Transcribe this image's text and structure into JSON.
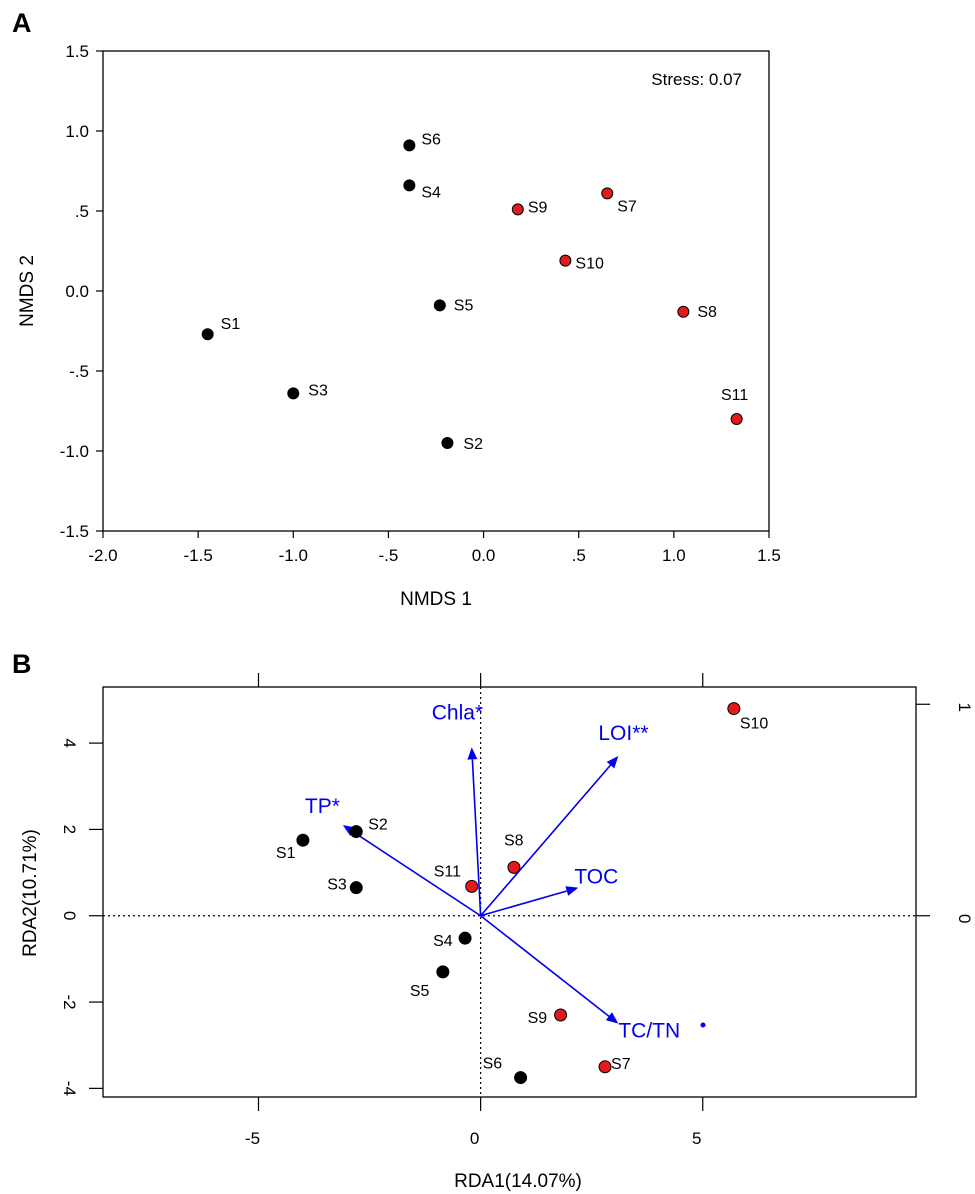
{
  "colors": {
    "black_point": "#000000",
    "red_point": "#e31a1c",
    "arrow": "#0000ee",
    "axis": "#000000"
  },
  "chart_data": [
    {
      "panel": "A",
      "type": "scatter",
      "title": "",
      "xlabel": "NMDS 1",
      "ylabel": "NMDS 2",
      "xlim": [
        -2.0,
        1.5
      ],
      "ylim": [
        -1.5,
        1.5
      ],
      "x_ticks": [
        "-2.0",
        "-1.5",
        "-1.0",
        "-.5",
        "0.0",
        ".5",
        "1.0",
        "1.5"
      ],
      "x_tick_values": [
        -2.0,
        -1.5,
        -1.0,
        -0.5,
        0.0,
        0.5,
        1.0,
        1.5
      ],
      "y_ticks": [
        "1.5",
        "1.0",
        ".5",
        "0.0",
        "-.5",
        "-1.0",
        "-1.5"
      ],
      "y_tick_values": [
        1.5,
        1.0,
        0.5,
        0.0,
        -0.5,
        -1.0,
        -1.5
      ],
      "annotation": "Stress: 0.07",
      "points": [
        {
          "label": "S1",
          "x": -1.45,
          "y": -0.27,
          "group": "black"
        },
        {
          "label": "S2",
          "x": -0.19,
          "y": -0.95,
          "group": "black"
        },
        {
          "label": "S3",
          "x": -1.0,
          "y": -0.64,
          "group": "black"
        },
        {
          "label": "S4",
          "x": -0.39,
          "y": 0.66,
          "group": "black"
        },
        {
          "label": "S5",
          "x": -0.23,
          "y": -0.09,
          "group": "black"
        },
        {
          "label": "S6",
          "x": -0.39,
          "y": 0.91,
          "group": "black"
        },
        {
          "label": "S7",
          "x": 0.65,
          "y": 0.61,
          "group": "red"
        },
        {
          "label": "S8",
          "x": 1.05,
          "y": -0.13,
          "group": "red"
        },
        {
          "label": "S9",
          "x": 0.18,
          "y": 0.51,
          "group": "red"
        },
        {
          "label": "S10",
          "x": 0.43,
          "y": 0.19,
          "group": "red"
        },
        {
          "label": "S11",
          "x": 1.33,
          "y": -0.8,
          "group": "red"
        }
      ]
    },
    {
      "panel": "B",
      "type": "scatter",
      "title": "",
      "xlabel": "RDA1(14.07%)",
      "ylabel": "RDA2(10.71%)",
      "xlim": [
        -8.5,
        9.8
      ],
      "ylim": [
        -4.2,
        5.3
      ],
      "x_ticks": [
        "-5",
        "0",
        "5"
      ],
      "x_tick_values": [
        -5,
        0,
        5
      ],
      "y_ticks": [
        "4",
        "2",
        "0",
        "-2",
        "-4"
      ],
      "y_tick_values": [
        4,
        2,
        0,
        -2,
        -4
      ],
      "top_ticks": [
        -5,
        0,
        5
      ],
      "right_axis_ticks": [
        "1",
        "0"
      ],
      "right_axis_values": [
        4.9,
        0
      ],
      "points": [
        {
          "label": "S1",
          "x": -4.0,
          "y": 1.75,
          "group": "black"
        },
        {
          "label": "S2",
          "x": -2.8,
          "y": 1.95,
          "group": "black"
        },
        {
          "label": "S3",
          "x": -2.8,
          "y": 0.65,
          "group": "black"
        },
        {
          "label": "S4",
          "x": -0.35,
          "y": -0.52,
          "group": "black"
        },
        {
          "label": "S5",
          "x": -0.85,
          "y": -1.3,
          "group": "black"
        },
        {
          "label": "S6",
          "x": 0.9,
          "y": -3.75,
          "group": "black"
        },
        {
          "label": "S7",
          "x": 2.8,
          "y": -3.5,
          "group": "red"
        },
        {
          "label": "S8",
          "x": 0.75,
          "y": 1.12,
          "group": "red"
        },
        {
          "label": "S9",
          "x": 1.8,
          "y": -2.3,
          "group": "red"
        },
        {
          "label": "S10",
          "x": 5.7,
          "y": 4.8,
          "group": "red"
        },
        {
          "label": "S11",
          "x": -0.2,
          "y": 0.68,
          "group": "red"
        }
      ],
      "vectors": [
        {
          "label": "Chla*",
          "x": -0.2,
          "y": 3.9
        },
        {
          "label": "LOI**",
          "x": 3.1,
          "y": 3.7
        },
        {
          "label": "TP*",
          "x": -3.1,
          "y": 2.1
        },
        {
          "label": "TOC",
          "x": 2.2,
          "y": 0.65
        },
        {
          "label": "TC/TN",
          "x": 3.1,
          "y": -2.5
        }
      ]
    }
  ]
}
